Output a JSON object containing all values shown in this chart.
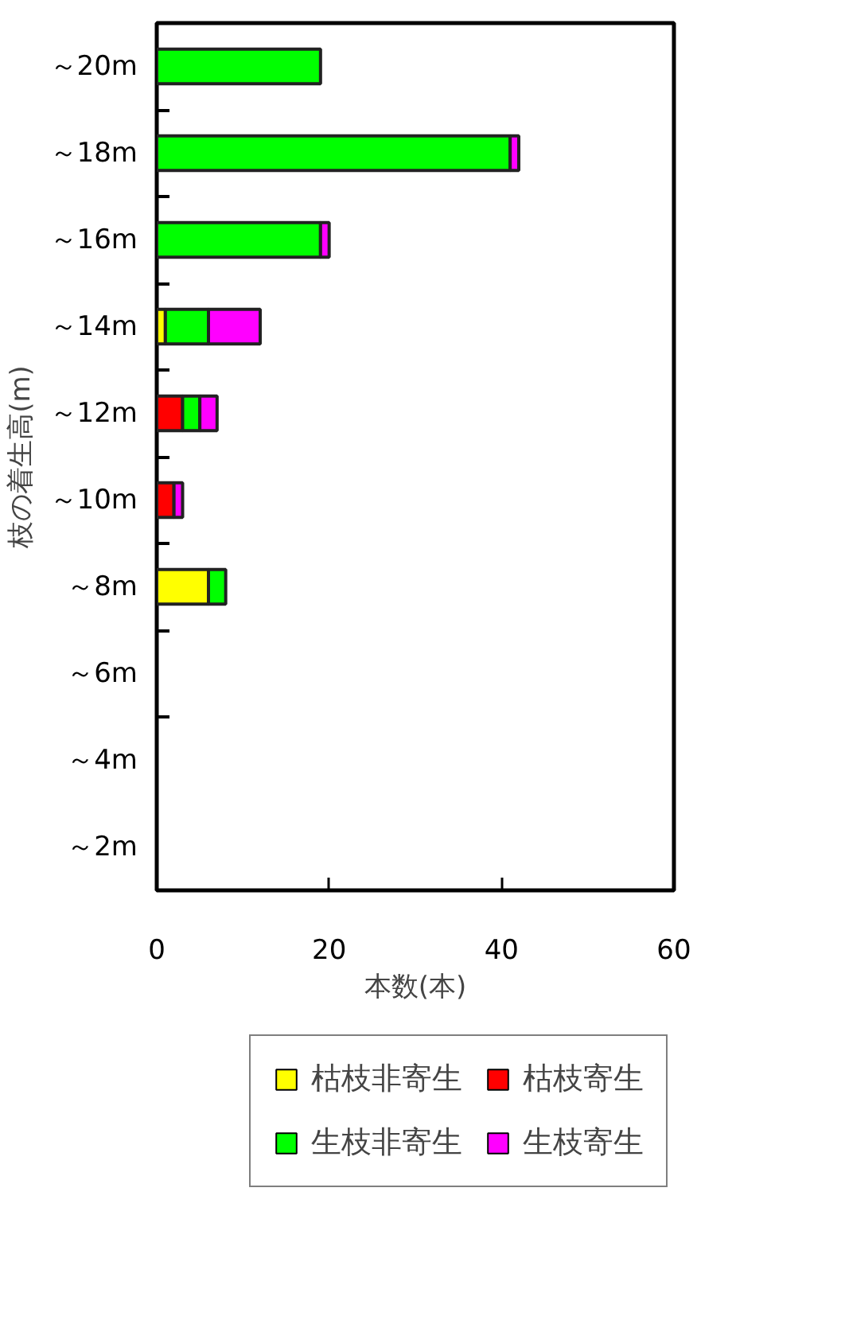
{
  "chart_data": {
    "type": "bar",
    "orientation": "horizontal",
    "stacked": true,
    "xlabel": "本数(本)",
    "ylabel": "枝の着生高(m)",
    "categories": [
      "～20m",
      "～18m",
      "～16m",
      "～14m",
      "～12m",
      "～10m",
      "～8m",
      "～6m",
      "～4m",
      "～2m"
    ],
    "series": [
      {
        "name": "枯枝非寄生",
        "color": "#ffff00",
        "values": [
          null,
          null,
          null,
          1,
          null,
          null,
          6,
          null,
          null,
          null
        ]
      },
      {
        "name": "枯枝寄生",
        "color": "#ff0000",
        "values": [
          null,
          null,
          null,
          null,
          3,
          2,
          null,
          null,
          null,
          null
        ]
      },
      {
        "name": "生枝非寄生",
        "color": "#00ff00",
        "values": [
          19,
          41,
          19,
          5,
          2,
          null,
          2,
          null,
          null,
          null
        ]
      },
      {
        "name": "生枝寄生",
        "color": "#ff00ff",
        "values": [
          null,
          1,
          1,
          6,
          2,
          1,
          null,
          null,
          null,
          null
        ]
      }
    ],
    "xlim": [
      0,
      60
    ],
    "xticks": [
      0,
      20,
      40,
      60
    ],
    "grid": false,
    "legend": "bottom"
  }
}
